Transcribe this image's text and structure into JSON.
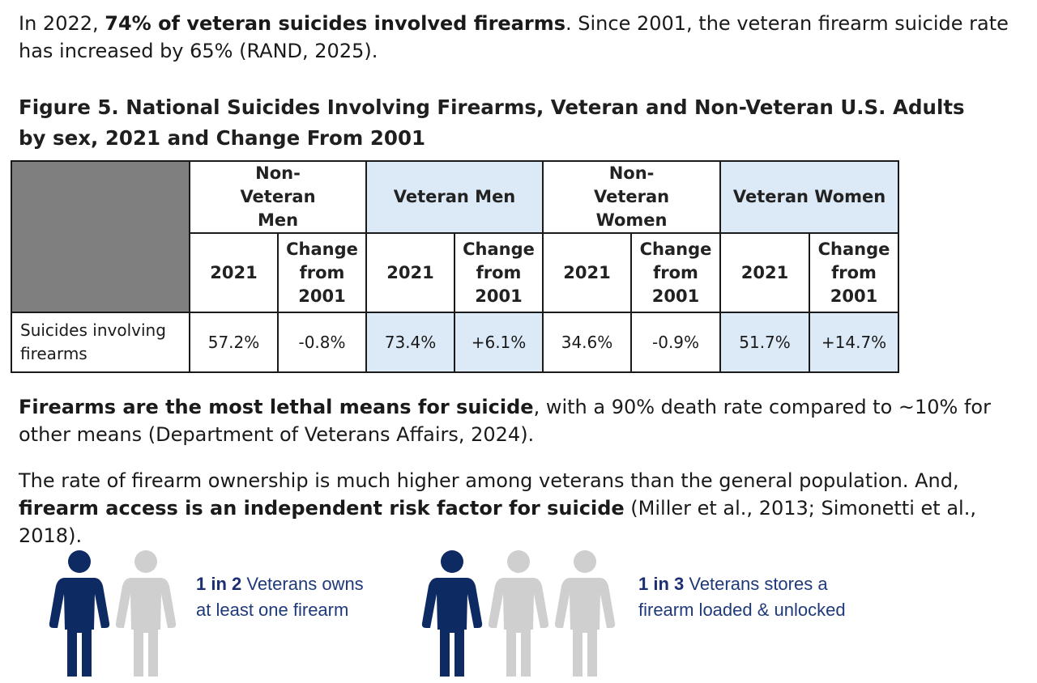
{
  "intro": {
    "lead": "In 2022, ",
    "bold": "74% of veteran suicides involved firearms",
    "rest": ". Since 2001, the veteran firearm suicide rate has increased by 65% (RAND, 2025)."
  },
  "figure": {
    "title_line1": "Figure 5. National Suicides Involving Firearms, Veteran and Non-Veteran U.S. Adults",
    "title_line2": "by sex, 2021 and Change From 2001"
  },
  "table": {
    "groups": [
      "Non-Veteran Men",
      "Veteran Men",
      "Non-Veteran Women",
      "Veteran Women"
    ],
    "sub_year": "2021",
    "sub_change": "Change from 2001",
    "row_label": "Suicides involving firearms",
    "values": [
      "57.2%",
      "-0.8%",
      "73.4%",
      "+6.1%",
      "34.6%",
      "-0.9%",
      "51.7%",
      "+14.7%"
    ]
  },
  "lethal": {
    "bold": "Firearms are the most lethal means for suicide",
    "rest": ", with a 90% death rate compared to ~10% for other means (Department of Veterans Affairs, 2024)."
  },
  "ownership": {
    "lead": "The rate of firearm ownership is much higher among veterans than the general population. And, ",
    "bold": "firearm access is an independent risk factor for suicide",
    "rest": " (Miller et al., 2013; Simonetti et al., 2018)."
  },
  "stat1": {
    "ratio": "1 in 2",
    "text_line1": " Veterans owns",
    "text_line2": "at least one firearm",
    "highlighted": 1,
    "total": 2
  },
  "stat2": {
    "ratio": "1 in 3",
    "text_line1": " Veterans stores a",
    "text_line2": "firearm loaded & unlocked",
    "highlighted": 1,
    "total": 3
  },
  "colors": {
    "person_highlight": "#0e2a63",
    "person_other": "#cfcfcf",
    "header_highlight": "#dce9f6",
    "corner_cell": "#7f7f7f"
  }
}
